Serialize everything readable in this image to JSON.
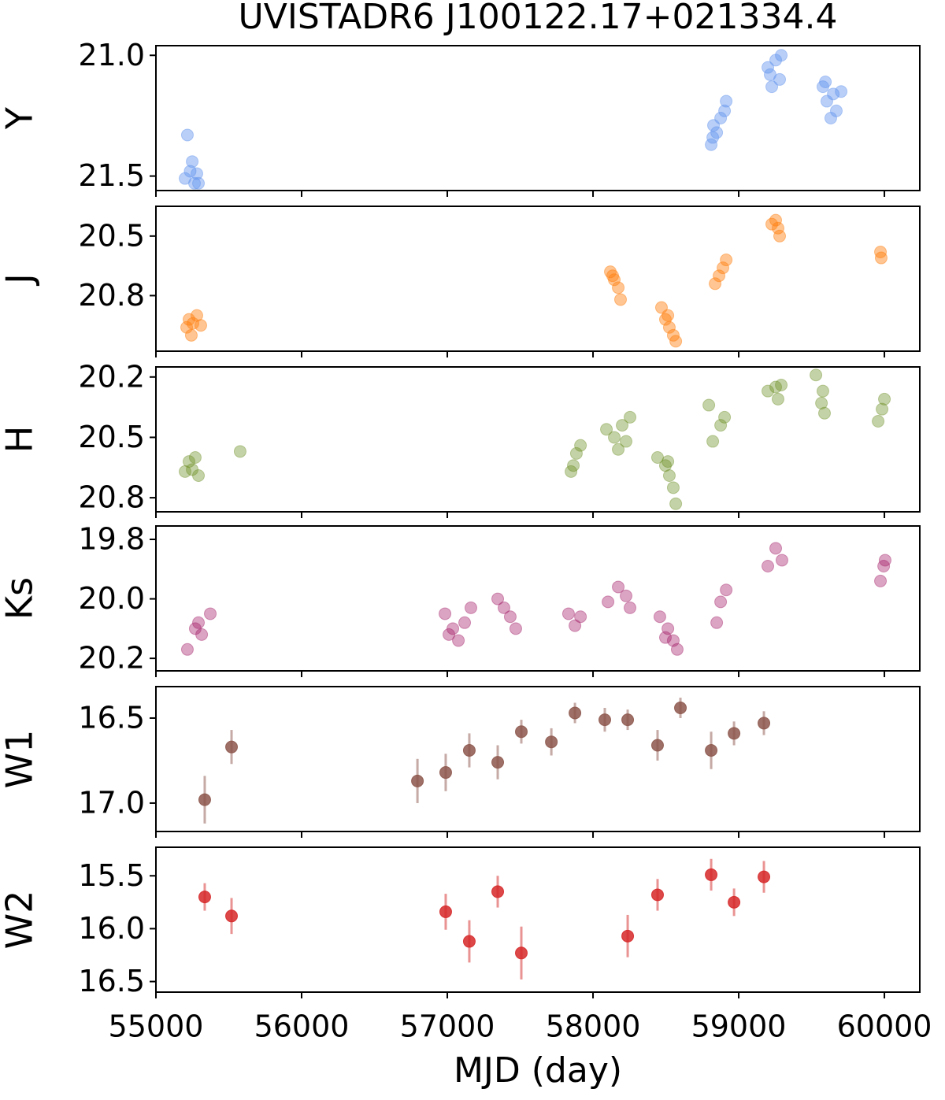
{
  "chart_data": [
    {
      "type": "scatter",
      "title": "UVISTADR6 J100122.17+021334.4",
      "ylabel": "Y",
      "color": "#6495ed",
      "opacity": 0.45,
      "x": [
        55200,
        55216,
        55235,
        55249,
        55265,
        55281,
        55292,
        58811,
        58822,
        58827,
        58849,
        58876,
        58903,
        58914,
        59200,
        59216,
        59227,
        59254,
        59281,
        59292,
        59578,
        59595,
        59605,
        59632,
        59649,
        59670,
        59703
      ],
      "values": [
        21.51,
        21.33,
        21.48,
        21.44,
        21.53,
        21.49,
        21.53,
        21.37,
        21.34,
        21.29,
        21.32,
        21.26,
        21.23,
        21.19,
        21.05,
        21.08,
        21.13,
        21.02,
        21.1,
        21.0,
        21.13,
        21.11,
        21.19,
        21.26,
        21.16,
        21.23,
        21.15
      ],
      "ylim": [
        21.56,
        20.96
      ],
      "yticks": [
        {
          "value": 21,
          "label": "21.0"
        },
        21.5
      ],
      "xlim": [
        55000,
        60243
      ],
      "xticks": [
        55000,
        56000,
        57000,
        58000,
        59000,
        60000
      ]
    },
    {
      "type": "scatter",
      "ylabel": "J",
      "color": "#ff7f0e",
      "opacity": 0.45,
      "x": [
        55211,
        55227,
        55243,
        55254,
        55281,
        55308,
        58119,
        58135,
        58146,
        58173,
        58189,
        58470,
        58497,
        58514,
        58524,
        58551,
        58568,
        58838,
        58865,
        58892,
        58914,
        59227,
        59254,
        59270,
        59281,
        59973,
        59978
      ],
      "values": [
        20.96,
        20.92,
        21.0,
        20.94,
        20.9,
        20.95,
        20.68,
        20.7,
        20.72,
        20.76,
        20.82,
        20.86,
        20.92,
        20.9,
        20.96,
        21.0,
        21.03,
        20.74,
        20.7,
        20.66,
        20.62,
        20.44,
        20.42,
        20.46,
        20.5,
        20.58,
        20.61
      ],
      "ylim": [
        21.08,
        20.35
      ],
      "yticks": [
        20.5,
        20.8
      ],
      "xlim": [
        55000,
        60243
      ],
      "xticks": [
        55000,
        56000,
        57000,
        58000,
        59000,
        60000
      ]
    },
    {
      "type": "scatter",
      "ylabel": "H",
      "color": "#6b8e23",
      "opacity": 0.4,
      "x": [
        55200,
        55227,
        55249,
        55270,
        55292,
        55578,
        57849,
        57865,
        57886,
        57914,
        58092,
        58146,
        58173,
        58200,
        58227,
        58254,
        58443,
        58497,
        58514,
        58524,
        58551,
        58568,
        58795,
        58822,
        58876,
        58903,
        59200,
        59254,
        59270,
        59292,
        59530,
        59568,
        59578,
        59589,
        59957,
        59984,
        60000
      ],
      "values": [
        20.67,
        20.62,
        20.66,
        20.6,
        20.69,
        20.57,
        20.67,
        20.64,
        20.58,
        20.54,
        20.46,
        20.5,
        20.56,
        20.44,
        20.52,
        20.4,
        20.6,
        20.64,
        20.62,
        20.69,
        20.75,
        20.83,
        20.34,
        20.52,
        20.44,
        20.4,
        20.27,
        20.25,
        20.31,
        20.24,
        20.19,
        20.33,
        20.27,
        20.38,
        20.42,
        20.36,
        20.31
      ],
      "ylim": [
        20.87,
        20.15
      ],
      "yticks": [
        20.2,
        20.5,
        20.8
      ],
      "xlim": [
        55000,
        60243
      ],
      "xticks": [
        55000,
        56000,
        57000,
        58000,
        59000,
        60000
      ]
    },
    {
      "type": "scatter",
      "ylabel": "Ks",
      "color": "#a21c66",
      "opacity": 0.4,
      "x": [
        55216,
        55270,
        55292,
        55314,
        55373,
        56984,
        57011,
        57038,
        57076,
        57119,
        57162,
        57346,
        57389,
        57432,
        57470,
        57832,
        57876,
        57914,
        58103,
        58173,
        58227,
        58254,
        58459,
        58497,
        58514,
        58551,
        58578,
        58849,
        58876,
        58914,
        59200,
        59254,
        59297,
        59973,
        59995,
        60005
      ],
      "values": [
        20.17,
        20.1,
        20.08,
        20.12,
        20.05,
        20.05,
        20.12,
        20.1,
        20.14,
        20.08,
        20.03,
        20.0,
        20.03,
        20.06,
        20.1,
        20.05,
        20.09,
        20.06,
        20.01,
        19.96,
        19.99,
        20.03,
        20.06,
        20.13,
        20.1,
        20.14,
        20.17,
        20.08,
        20.01,
        19.97,
        19.89,
        19.83,
        19.87,
        19.94,
        19.89,
        19.87
      ],
      "ylim": [
        20.242,
        19.755
      ],
      "yticks": [
        19.8,
        {
          "value": 20,
          "label": "20.0"
        },
        20.2
      ],
      "xlim": [
        55000,
        60243
      ],
      "xticks": [
        55000,
        56000,
        57000,
        58000,
        59000,
        60000
      ]
    },
    {
      "type": "scatter",
      "ylabel": "W1",
      "color": "#8c564b",
      "opacity": 0.85,
      "x": [
        55335,
        55519,
        56795,
        56989,
        57151,
        57346,
        57508,
        57714,
        57876,
        58081,
        58238,
        58443,
        58600,
        58811,
        58968,
        59173
      ],
      "values": [
        16.98,
        16.67,
        16.87,
        16.82,
        16.69,
        16.76,
        16.58,
        16.64,
        16.47,
        16.51,
        16.51,
        16.66,
        16.44,
        16.69,
        16.59,
        16.53
      ],
      "errors": [
        0.14,
        0.1,
        0.13,
        0.11,
        0.1,
        0.1,
        0.07,
        0.08,
        0.06,
        0.07,
        0.06,
        0.09,
        0.06,
        0.11,
        0.07,
        0.07
      ],
      "ylim": [
        17.167,
        16.315
      ],
      "yticks": [
        16.5,
        {
          "value": 17,
          "label": "17.0"
        }
      ],
      "xlim": [
        55000,
        60243
      ],
      "xticks": [
        55000,
        56000,
        57000,
        58000,
        59000,
        60000
      ]
    },
    {
      "type": "scatter",
      "ylabel": "W2",
      "xlabel": "MJD (day)",
      "color": "#d62728",
      "opacity": 0.85,
      "x": [
        55335,
        55519,
        56989,
        57151,
        57346,
        57508,
        58238,
        58443,
        58811,
        58968,
        59173
      ],
      "values": [
        15.7,
        15.88,
        15.84,
        16.12,
        15.65,
        16.23,
        16.07,
        15.68,
        15.49,
        15.75,
        15.51
      ],
      "errors": [
        0.13,
        0.17,
        0.17,
        0.2,
        0.15,
        0.25,
        0.2,
        0.15,
        0.15,
        0.13,
        0.15
      ],
      "ylim": [
        16.6,
        15.23
      ],
      "yticks": [
        15.5,
        {
          "value": 16,
          "label": "16.0"
        },
        16.5
      ],
      "xlim": [
        55000,
        60243
      ],
      "xticks": [
        55000,
        56000,
        57000,
        58000,
        59000,
        60000
      ]
    }
  ]
}
